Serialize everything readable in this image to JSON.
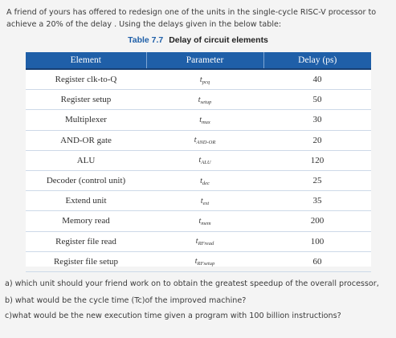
{
  "intro": "A friend of yours has offered to redesign one of the units in the single-cycle RISC-V processor to achieve a  20% of the delay  . Using the delays given in the below table:",
  "table": {
    "number": "Table 7.7",
    "title": "Delay of circuit elements",
    "headers": [
      "Element",
      "Parameter",
      "Delay (ps)"
    ],
    "rows": [
      {
        "element": "Register clk-to-Q",
        "param_base": "t",
        "param_sub": "pcq",
        "delay": "40"
      },
      {
        "element": "Register setup",
        "param_base": "t",
        "param_sub": "setup",
        "delay": "50"
      },
      {
        "element": "Multiplexer",
        "param_base": "t",
        "param_sub": "mux",
        "delay": "30"
      },
      {
        "element": "AND-OR gate",
        "param_base": "t",
        "param_sub": "AND-OR",
        "delay": "20"
      },
      {
        "element": "ALU",
        "param_base": "t",
        "param_sub": "ALU",
        "delay": "120"
      },
      {
        "element": "Decoder (control unit)",
        "param_base": "t",
        "param_sub": "dec",
        "delay": "25"
      },
      {
        "element": "Extend unit",
        "param_base": "t",
        "param_sub": "ext",
        "delay": "35"
      },
      {
        "element": "Memory read",
        "param_base": "t",
        "param_sub": "mem",
        "delay": "200"
      },
      {
        "element": "Register file read",
        "param_base": "t",
        "param_sub": "RFread",
        "delay": "100"
      },
      {
        "element": "Register file setup",
        "param_base": "t",
        "param_sub": "RFsetup",
        "delay": "60"
      }
    ]
  },
  "questions": [
    "a) which unit should your friend work on to obtain the greatest speedup of the overall processor,",
    "b) what would be the cycle time (Tc)of the improved machine?",
    "c)what would be the new execution time given a program with 100 billion instructions?"
  ]
}
